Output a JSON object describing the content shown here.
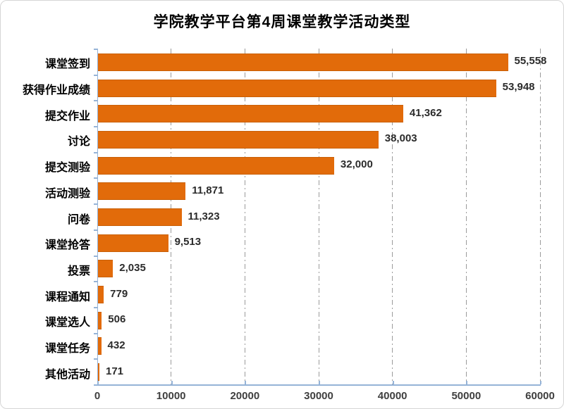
{
  "chart_data": {
    "type": "bar",
    "orientation": "horizontal",
    "title": "学院教学平台第4周课堂教学活动类型",
    "categories": [
      "课堂签到",
      "获得作业成绩",
      "提交作业",
      "讨论",
      "提交测验",
      "活动测验",
      "问卷",
      "课堂抢答",
      "投票",
      "课程通知",
      "课堂选人",
      "课堂任务",
      "其他活动"
    ],
    "values": [
      55558,
      53948,
      41362,
      38003,
      32000,
      11871,
      11323,
      9513,
      2035,
      779,
      506,
      432,
      171
    ],
    "value_labels": [
      "55,558",
      "53,948",
      "41,362",
      "38,003",
      "32,000",
      "11,871",
      "11,323",
      "9,513",
      "2,035",
      "779",
      "506",
      "432",
      "171"
    ],
    "xlabel": "",
    "ylabel": "",
    "xlim": [
      0,
      60000
    ],
    "x_ticks": [
      0,
      10000,
      20000,
      30000,
      40000,
      50000,
      60000
    ],
    "x_tick_labels": [
      "0",
      "10000",
      "20000",
      "30000",
      "40000",
      "50000",
      "60000"
    ],
    "grid": "vertical-dash-dot",
    "legend": "none",
    "colors": {
      "bar": "#e26b0a",
      "axis": "#95b3d7",
      "gridline": "#9b9b9b",
      "title_text": "#000000",
      "category_text": "#000000",
      "value_text": "#2b2b2b",
      "tick_text": "#3f3f3f",
      "frame_border": "#d6d6d6"
    }
  }
}
